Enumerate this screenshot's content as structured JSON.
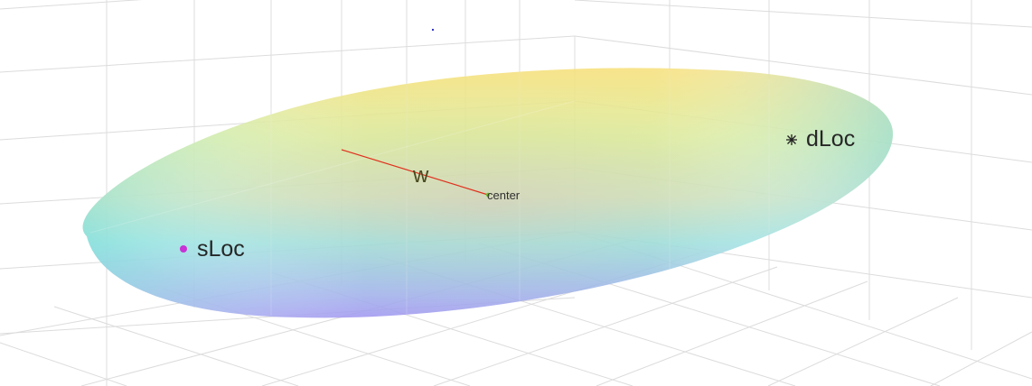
{
  "figure": {
    "labels": {
      "source": "sLoc",
      "destination": "dLoc",
      "center": "center",
      "vector": "w"
    },
    "colors": {
      "background": "#ffffff",
      "grid": "#dcdcdc",
      "vector_line": "#e0301e",
      "source_marker": "#c832d6",
      "destination_marker": "#222222",
      "center_marker": "#6cc02a",
      "surface_top": "#f6e07a",
      "surface_middle": "#cfe6a0",
      "surface_bottom": "#9aa3f2"
    },
    "markers": {
      "source": "filled-circle",
      "destination": "asterisk",
      "center": "small-dot"
    },
    "surface": "semi-transparent ellipsoid, yellow-green-cyan-blue gradient"
  }
}
